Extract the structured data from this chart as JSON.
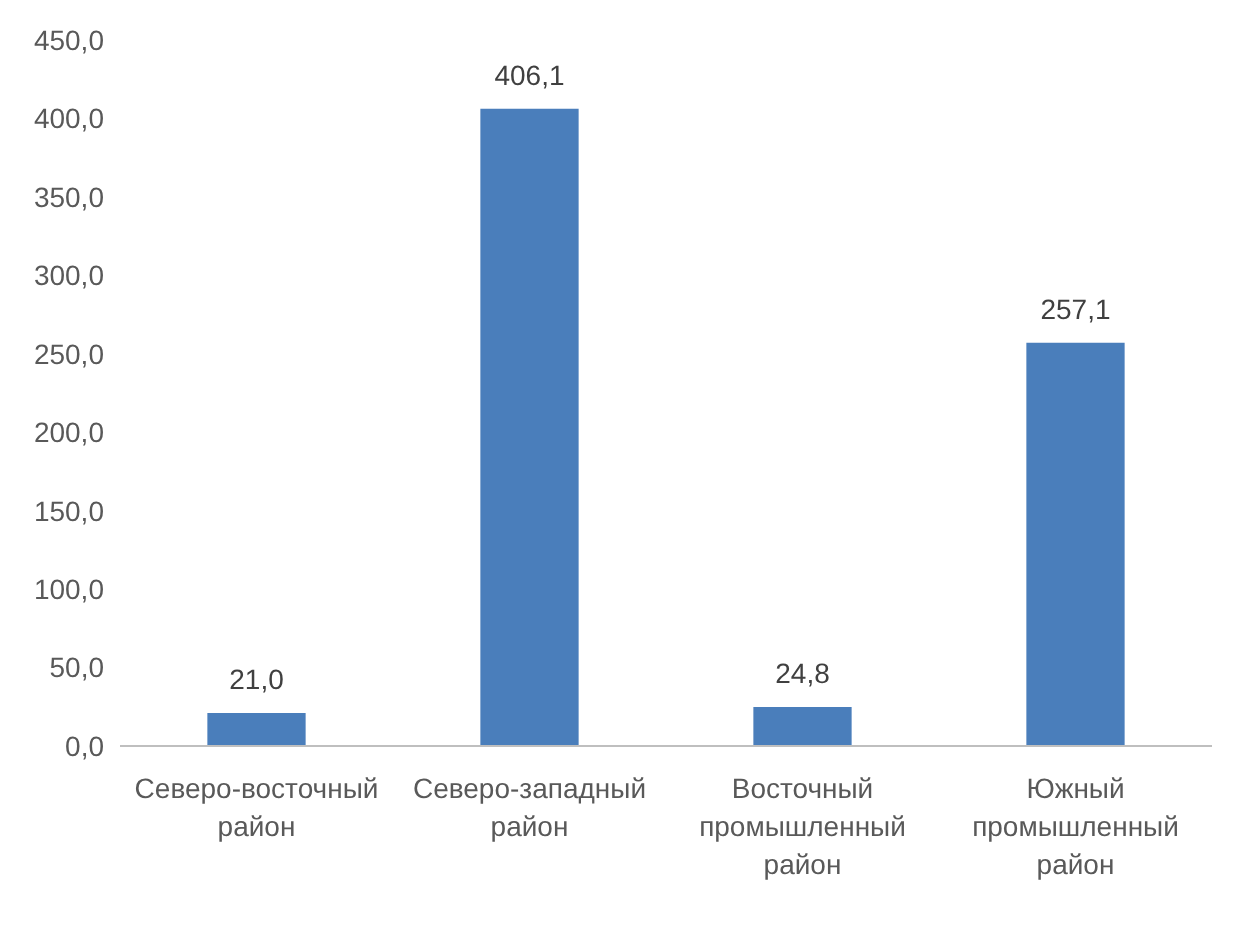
{
  "chart_data": {
    "type": "bar",
    "categories": [
      "Северо-восточный район",
      "Северо-западный район",
      "Восточный промышленный район",
      "Южный промышленный район"
    ],
    "values": [
      21.0,
      406.1,
      24.8,
      257.1
    ],
    "value_labels": [
      "21,0",
      "406,1",
      "24,8",
      "257,1"
    ],
    "color": "#4a7ebb",
    "ylim": [
      0,
      450
    ],
    "yticks": [
      {
        "value": 0,
        "label": "0,0"
      },
      {
        "value": 50,
        "label": "50,0"
      },
      {
        "value": 100,
        "label": "100,0"
      },
      {
        "value": 150,
        "label": "150,0"
      },
      {
        "value": 200,
        "label": "200,0"
      },
      {
        "value": 250,
        "label": "250,0"
      },
      {
        "value": 300,
        "label": "300,0"
      },
      {
        "value": 350,
        "label": "350,0"
      },
      {
        "value": 400,
        "label": "400,0"
      },
      {
        "value": 450,
        "label": "450,0"
      }
    ],
    "grid": false
  }
}
